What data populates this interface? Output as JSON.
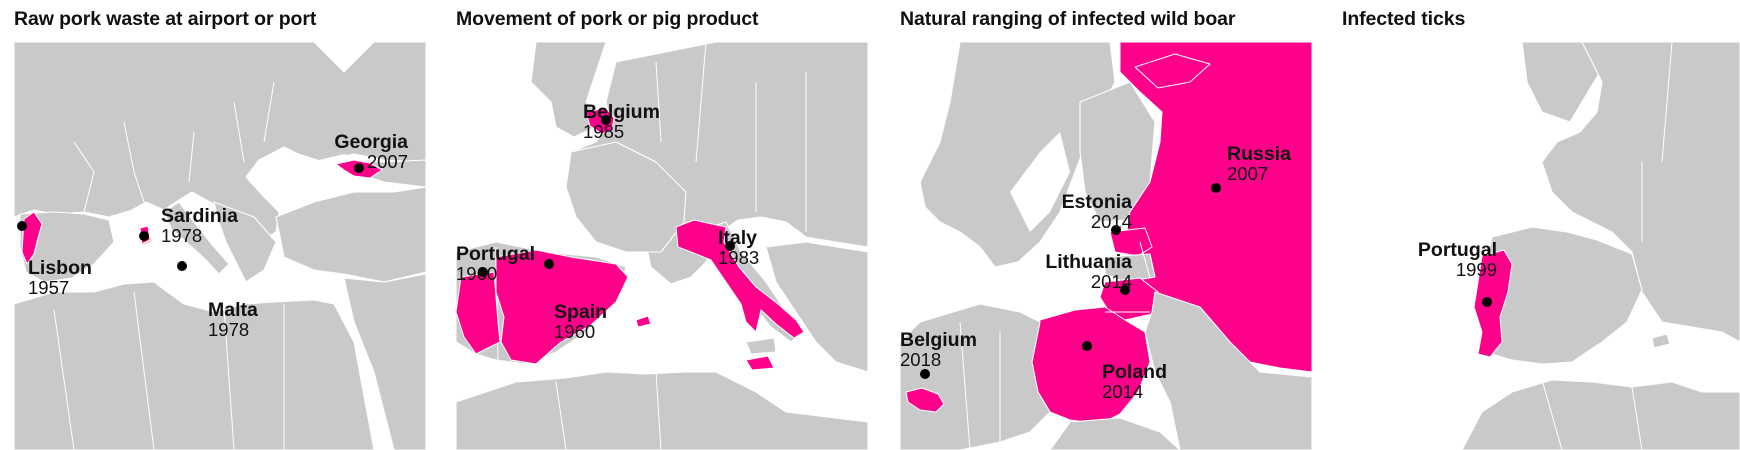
{
  "colors": {
    "land": "#c9c9c9",
    "sea": "#ffffff",
    "highlight": "#ff008a",
    "dot": "#000000"
  },
  "panels": [
    {
      "title": "Raw pork waste at airport or port",
      "places": [
        {
          "name": "Lisbon",
          "year": "1957"
        },
        {
          "name": "Sardinia",
          "year": "1978"
        },
        {
          "name": "Malta",
          "year": "1978"
        },
        {
          "name": "Georgia",
          "year": "2007"
        }
      ]
    },
    {
      "title": "Movement of pork or pig product",
      "places": [
        {
          "name": "Belgium",
          "year": "1985"
        },
        {
          "name": "Portugal",
          "year": "1960"
        },
        {
          "name": "Spain",
          "year": "1960"
        },
        {
          "name": "Italy",
          "year": "1983"
        }
      ]
    },
    {
      "title": "Natural ranging of infected wild boar",
      "places": [
        {
          "name": "Russia",
          "year": "2007"
        },
        {
          "name": "Estonia",
          "year": "2014"
        },
        {
          "name": "Lithuania",
          "year": "2014"
        },
        {
          "name": "Belgium",
          "year": "2018"
        },
        {
          "name": "Poland",
          "year": "2014"
        }
      ]
    },
    {
      "title": "Infected ticks",
      "places": [
        {
          "name": "Portugal",
          "year": "1999"
        }
      ]
    }
  ]
}
